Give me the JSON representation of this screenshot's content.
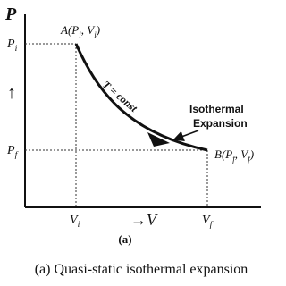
{
  "axis_labels": {
    "y": "P",
    "x": "→V",
    "y_arrow": "↑"
  },
  "ticks": {
    "p_i": [
      "P",
      "i"
    ],
    "p_f": [
      "P",
      "f"
    ],
    "v_i": [
      "V",
      "i"
    ],
    "v_f": [
      "V",
      "f"
    ]
  },
  "points": {
    "a": [
      "A(P",
      "i",
      ", V",
      "i",
      ")"
    ],
    "b": [
      "B(P",
      "f",
      ", V",
      "f",
      ")"
    ]
  },
  "curve_label": "T = const",
  "annotation": [
    "Isothermal",
    "Expansion"
  ],
  "panel_label": "(a)",
  "caption": "(a) Quasi-static isothermal expansion"
}
